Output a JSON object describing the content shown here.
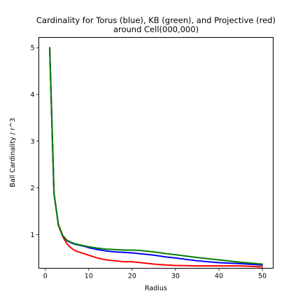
{
  "chart_data": {
    "type": "line",
    "title_line1": "Cardinality for Torus (blue), KB (green), and Projective (red)",
    "title_line2": "around Cell(000,000)",
    "xlabel": "Radius",
    "ylabel": "Ball Cardinality / r^3",
    "xlim": [
      -1.5,
      52.5
    ],
    "ylim": [
      0.28,
      5.22
    ],
    "xticks": [
      0,
      10,
      20,
      30,
      40,
      50
    ],
    "yticks": [
      1,
      2,
      3,
      4,
      5
    ],
    "grid": false,
    "legend": "none",
    "series": [
      {
        "color": "#ff0000",
        "x": [
          1,
          2,
          3,
          4,
          5,
          6,
          7,
          8,
          9,
          10,
          12,
          14,
          16,
          18,
          20,
          22,
          25,
          28,
          30,
          35,
          40,
          45,
          50
        ],
        "y": [
          5.0,
          1.88,
          1.2,
          0.96,
          0.8,
          0.71,
          0.65,
          0.62,
          0.59,
          0.56,
          0.5,
          0.46,
          0.44,
          0.42,
          0.42,
          0.4,
          0.37,
          0.35,
          0.34,
          0.33,
          0.33,
          0.33,
          0.31
        ]
      },
      {
        "color": "#0000ff",
        "x": [
          1,
          2,
          3,
          4,
          5,
          6,
          7,
          8,
          9,
          10,
          12,
          14,
          16,
          18,
          20,
          22,
          25,
          28,
          30,
          35,
          40,
          45,
          50
        ],
        "y": [
          5.0,
          1.88,
          1.22,
          0.98,
          0.87,
          0.82,
          0.79,
          0.77,
          0.75,
          0.72,
          0.68,
          0.65,
          0.63,
          0.62,
          0.61,
          0.59,
          0.56,
          0.52,
          0.5,
          0.44,
          0.4,
          0.38,
          0.35
        ]
      },
      {
        "color": "#008000",
        "x": [
          1,
          2,
          3,
          4,
          5,
          6,
          7,
          8,
          9,
          10,
          12,
          14,
          16,
          18,
          20,
          22,
          25,
          28,
          30,
          35,
          40,
          45,
          50
        ],
        "y": [
          5.0,
          1.88,
          1.22,
          0.98,
          0.88,
          0.83,
          0.8,
          0.78,
          0.76,
          0.74,
          0.71,
          0.69,
          0.68,
          0.67,
          0.67,
          0.66,
          0.63,
          0.59,
          0.57,
          0.51,
          0.46,
          0.41,
          0.37
        ]
      }
    ]
  }
}
